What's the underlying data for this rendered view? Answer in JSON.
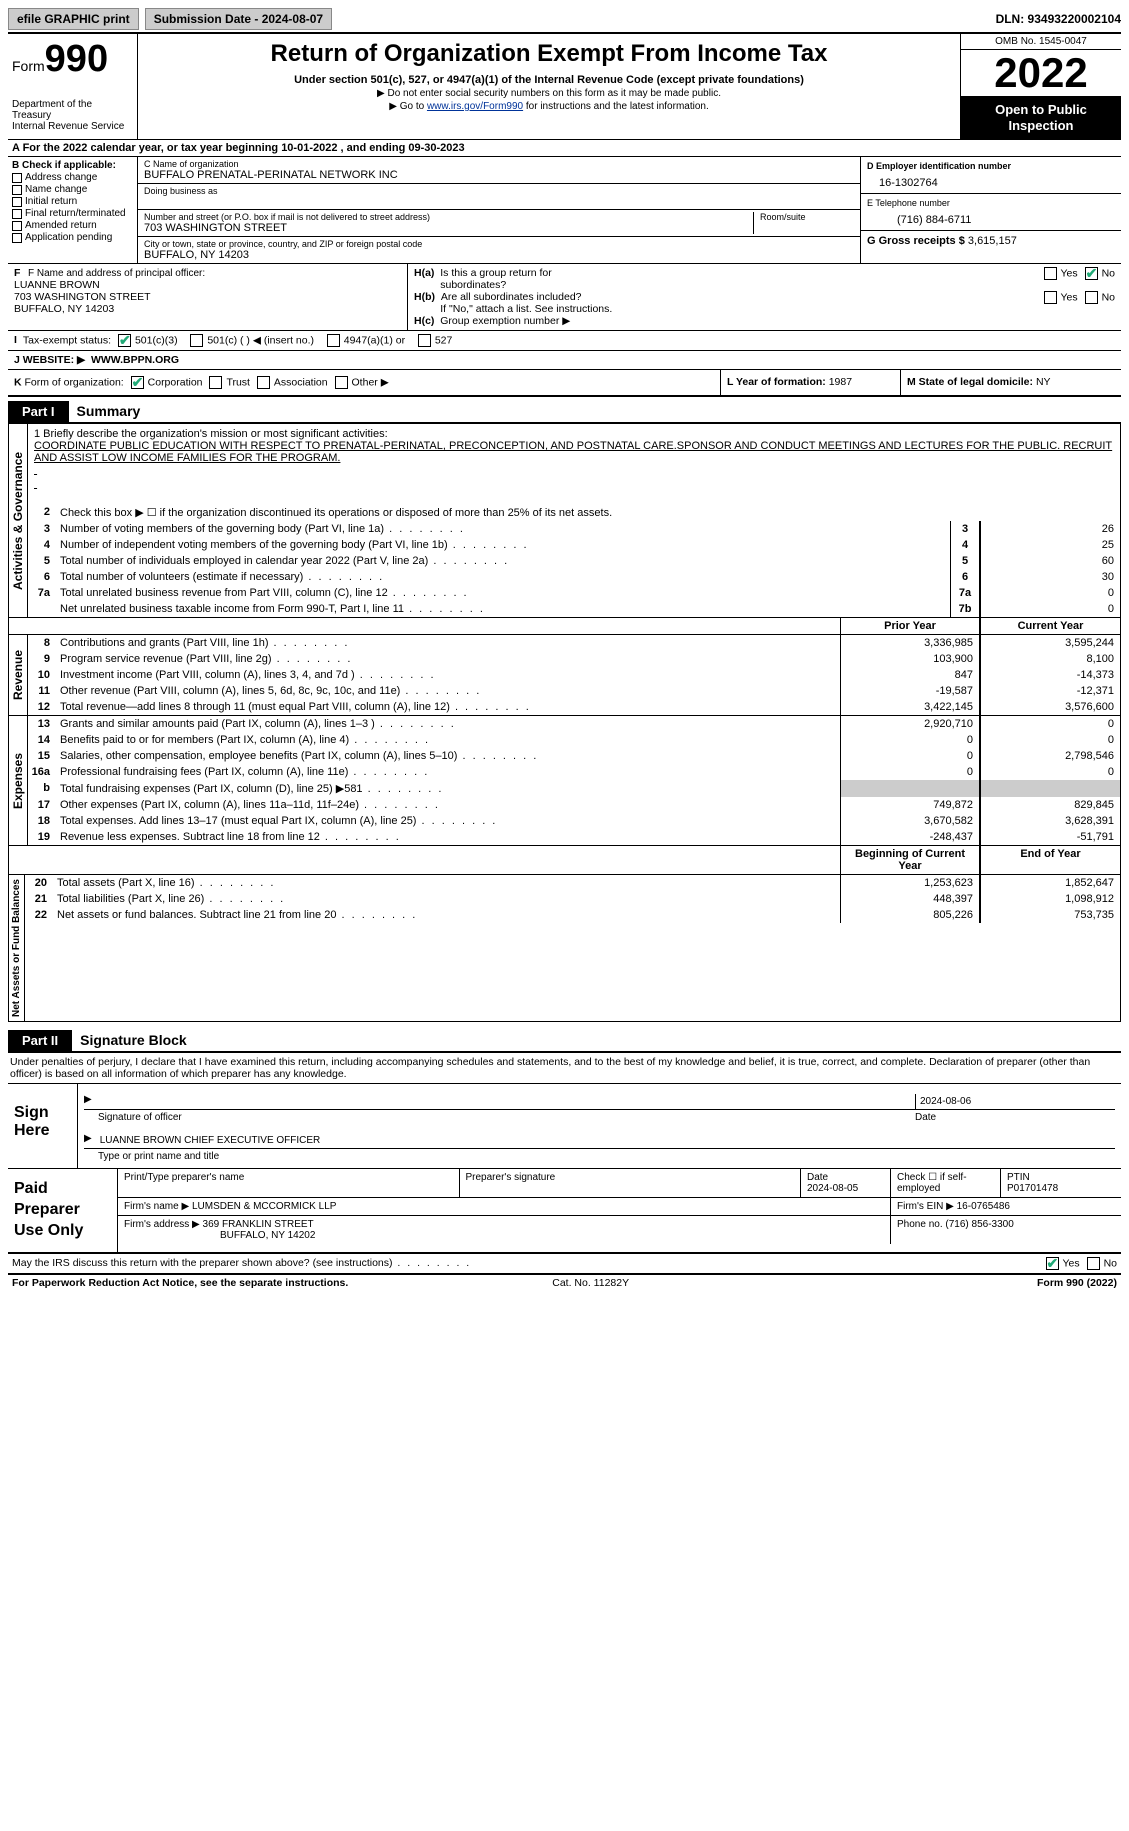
{
  "colors": {
    "text": "#000000",
    "bg": "#ffffff",
    "accent_green": "#22aa77",
    "link": "#003399",
    "grey_fill": "#cccccc"
  },
  "topbar": {
    "efile_label": "efile GRAPHIC print",
    "submission_label": "Submission Date - 2024-08-07",
    "dln_label": "DLN: 93493220002104"
  },
  "header": {
    "form_word": "Form",
    "form_number": "990",
    "dept": "Department of the Treasury",
    "irs": "Internal Revenue Service",
    "title": "Return of Organization Exempt From Income Tax",
    "subtitle": "Under section 501(c), 527, or 4947(a)(1) of the Internal Revenue Code (except private foundations)",
    "note1": "▶ Do not enter social security numbers on this form as it may be made public.",
    "note2_pre": "▶ Go to ",
    "note2_link": "www.irs.gov/Form990",
    "note2_post": " for instructions and the latest information.",
    "omb": "OMB No. 1545-0047",
    "year": "2022",
    "inspect1": "Open to Public",
    "inspect2": "Inspection"
  },
  "line_a": "A For the 2022 calendar year, or tax year beginning 10-01-2022    , and ending 09-30-2023",
  "box_b": {
    "header": "B Check if applicable:",
    "items": [
      "Address change",
      "Name change",
      "Initial return",
      "Final return/terminated",
      "Amended return",
      "Application pending"
    ]
  },
  "box_c": {
    "name_lbl": "C Name of organization",
    "name": "BUFFALO PRENATAL-PERINATAL NETWORK INC",
    "dba_lbl": "Doing business as",
    "dba": "",
    "street_lbl": "Number and street (or P.O. box if mail is not delivered to street address)",
    "street": "703 WASHINGTON STREET",
    "room_lbl": "Room/suite",
    "room": "",
    "city_lbl": "City or town, state or province, country, and ZIP or foreign postal code",
    "city": "BUFFALO, NY  14203"
  },
  "box_d": {
    "ein_lbl": "D Employer identification number",
    "ein": "16-1302764",
    "phone_lbl": "E Telephone number",
    "phone": "(716) 884-6711",
    "gross_lbl": "G Gross receipts $",
    "gross": "3,615,157"
  },
  "box_f": {
    "lbl": "F  Name and address of principal officer:",
    "name": "LUANNE BROWN",
    "addr1": "703 WASHINGTON STREET",
    "addr2": "BUFFALO, NY  14203"
  },
  "box_h": {
    "a_lbl": "H(a)  Is this a group return for subordinates?",
    "a_yes": "Yes",
    "a_no": "No",
    "b_lbl": "H(b)  Are all subordinates included?",
    "b_note": "If \"No,\" attach a list. See instructions.",
    "c_lbl": "H(c)  Group exemption number ▶"
  },
  "tax_status": {
    "lbl": "I  Tax-exempt status:",
    "opts": [
      "501(c)(3)",
      "501(c) (  ) ◀ (insert no.)",
      "4947(a)(1) or",
      "527"
    ]
  },
  "website": {
    "lbl": "J  Website: ▶",
    "val": "WWW.BPPN.ORG"
  },
  "row_k": {
    "k_lbl": "K Form of organization:",
    "k_opts": [
      "Corporation",
      "Trust",
      "Association",
      "Other ▶"
    ],
    "l_lbl": "L Year of formation:",
    "l_val": "1987",
    "m_lbl": "M State of legal domicile:",
    "m_val": "NY"
  },
  "part1": {
    "bar": "Part I",
    "title": "Summary"
  },
  "mission": {
    "lbl": "1   Briefly describe the organization's mission or most significant activities:",
    "text": "COORDINATE PUBLIC EDUCATION WITH RESPECT TO PRENATAL-PERINATAL, PRECONCEPTION, AND POSTNATAL CARE.SPONSOR AND CONDUCT MEETINGS AND LECTURES FOR THE PUBLIC. RECRUIT AND ASSIST LOW INCOME FAMILIES FOR THE PROGRAM."
  },
  "summary": {
    "sections": [
      {
        "side": "Activities & Governance",
        "pre_rows": [
          {
            "num": "2",
            "txt": "Check this box ▶ ☐  if the organization discontinued its operations or disposed of more than 25% of its net assets."
          }
        ],
        "rows": [
          {
            "num": "3",
            "txt": "Number of voting members of the governing body (Part VI, line 1a)",
            "box": "3",
            "val": "26"
          },
          {
            "num": "4",
            "txt": "Number of independent voting members of the governing body (Part VI, line 1b)",
            "box": "4",
            "val": "25"
          },
          {
            "num": "5",
            "txt": "Total number of individuals employed in calendar year 2022 (Part V, line 2a)",
            "box": "5",
            "val": "60"
          },
          {
            "num": "6",
            "txt": "Total number of volunteers (estimate if necessary)",
            "box": "6",
            "val": "30"
          },
          {
            "num": "7a",
            "txt": "Total unrelated business revenue from Part VIII, column (C), line 12",
            "box": "7a",
            "val": "0"
          },
          {
            "num": "",
            "txt": "Net unrelated business taxable income from Form 990-T, Part I, line 11",
            "box": "7b",
            "val": "0"
          }
        ]
      }
    ],
    "col_hdr_prior": "Prior Year",
    "col_hdr_current": "Current Year",
    "revenue": {
      "side": "Revenue",
      "rows": [
        {
          "num": "8",
          "txt": "Contributions and grants (Part VIII, line 1h)",
          "prior": "3,336,985",
          "curr": "3,595,244"
        },
        {
          "num": "9",
          "txt": "Program service revenue (Part VIII, line 2g)",
          "prior": "103,900",
          "curr": "8,100"
        },
        {
          "num": "10",
          "txt": "Investment income (Part VIII, column (A), lines 3, 4, and 7d )",
          "prior": "847",
          "curr": "-14,373"
        },
        {
          "num": "11",
          "txt": "Other revenue (Part VIII, column (A), lines 5, 6d, 8c, 9c, 10c, and 11e)",
          "prior": "-19,587",
          "curr": "-12,371"
        },
        {
          "num": "12",
          "txt": "Total revenue—add lines 8 through 11 (must equal Part VIII, column (A), line 12)",
          "prior": "3,422,145",
          "curr": "3,576,600"
        }
      ]
    },
    "expenses": {
      "side": "Expenses",
      "rows": [
        {
          "num": "13",
          "txt": "Grants and similar amounts paid (Part IX, column (A), lines 1–3 )",
          "prior": "2,920,710",
          "curr": "0"
        },
        {
          "num": "14",
          "txt": "Benefits paid to or for members (Part IX, column (A), line 4)",
          "prior": "0",
          "curr": "0"
        },
        {
          "num": "15",
          "txt": "Salaries, other compensation, employee benefits (Part IX, column (A), lines 5–10)",
          "prior": "0",
          "curr": "2,798,546"
        },
        {
          "num": "16a",
          "txt": "Professional fundraising fees (Part IX, column (A), line 11e)",
          "prior": "0",
          "curr": "0"
        },
        {
          "num": "b",
          "txt": "Total fundraising expenses (Part IX, column (D), line 25) ▶581",
          "prior": "GREY",
          "curr": "GREY"
        },
        {
          "num": "17",
          "txt": "Other expenses (Part IX, column (A), lines 11a–11d, 11f–24e)",
          "prior": "749,872",
          "curr": "829,845"
        },
        {
          "num": "18",
          "txt": "Total expenses. Add lines 13–17 (must equal Part IX, column (A), line 25)",
          "prior": "3,670,582",
          "curr": "3,628,391"
        },
        {
          "num": "19",
          "txt": "Revenue less expenses. Subtract line 18 from line 12",
          "prior": "-248,437",
          "curr": "-51,791"
        }
      ]
    },
    "netassets": {
      "side": "Net Assets or Fund Balances",
      "hdr_prior": "Beginning of Current Year",
      "hdr_curr": "End of Year",
      "rows": [
        {
          "num": "20",
          "txt": "Total assets (Part X, line 16)",
          "prior": "1,253,623",
          "curr": "1,852,647"
        },
        {
          "num": "21",
          "txt": "Total liabilities (Part X, line 26)",
          "prior": "448,397",
          "curr": "1,098,912"
        },
        {
          "num": "22",
          "txt": "Net assets or fund balances. Subtract line 21 from line 20",
          "prior": "805,226",
          "curr": "753,735"
        }
      ]
    }
  },
  "part2": {
    "bar": "Part II",
    "title": "Signature Block"
  },
  "penalty": "Under penalties of perjury, I declare that I have examined this return, including accompanying schedules and statements, and to the best of my knowledge and belief, it is true, correct, and complete. Declaration of preparer (other than officer) is based on all information of which preparer has any knowledge.",
  "sign": {
    "left": "Sign Here",
    "sig_lbl": "Signature of officer",
    "date": "2024-08-06",
    "date_lbl": "Date",
    "name": "LUANNE BROWN  CHIEF EXECUTIVE OFFICER",
    "name_lbl": "Type or print name and title"
  },
  "paid": {
    "left": "Paid Preparer Use Only",
    "r1": {
      "c1_lbl": "Print/Type preparer's name",
      "c1": "",
      "c2_lbl": "Preparer's signature",
      "c2": "",
      "c3_lbl": "Date",
      "c3": "2024-08-05",
      "c4_lbl": "Check ☐ if self-employed",
      "c5_lbl": "PTIN",
      "c5": "P01701478"
    },
    "r2": {
      "firm_lbl": "Firm's name      ▶",
      "firm": "LUMSDEN & MCCORMICK LLP",
      "ein_lbl": "Firm's EIN ▶",
      "ein": "16-0765486"
    },
    "r3": {
      "addr_lbl": "Firm's address  ▶",
      "addr1": "369 FRANKLIN STREET",
      "addr2": "BUFFALO, NY  14202",
      "phone_lbl": "Phone no.",
      "phone": "(716) 856-3300"
    }
  },
  "may_discuss": {
    "txt": "May the IRS discuss this return with the preparer shown above? (see instructions)",
    "yes": "Yes",
    "no": "No"
  },
  "footer": {
    "left": "For Paperwork Reduction Act Notice, see the separate instructions.",
    "mid": "Cat. No. 11282Y",
    "right": "Form 990 (2022)"
  }
}
